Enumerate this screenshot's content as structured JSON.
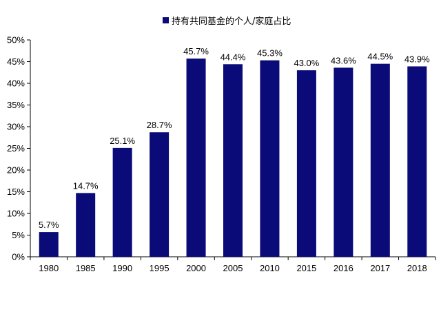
{
  "chart_data": {
    "type": "bar",
    "categories": [
      "1980",
      "1985",
      "1990",
      "1995",
      "2000",
      "2005",
      "2010",
      "2015",
      "2016",
      "2017",
      "2018"
    ],
    "series": [
      {
        "name": "持有共同基金的个人/家庭占比",
        "values": [
          5.7,
          14.7,
          25.1,
          28.7,
          45.7,
          44.4,
          45.3,
          43.0,
          43.6,
          44.5,
          43.9
        ],
        "data_labels": [
          "5.7%",
          "14.7%",
          "25.1%",
          "28.7%",
          "45.7%",
          "44.4%",
          "45.3%",
          "43.0%",
          "43.6%",
          "44.5%",
          "43.9%"
        ],
        "color": "#0a0a78"
      }
    ],
    "yticks": [
      0,
      5,
      10,
      15,
      20,
      25,
      30,
      35,
      40,
      45,
      50
    ],
    "ytick_labels": [
      "0%",
      "5%",
      "10%",
      "15%",
      "20%",
      "25%",
      "30%",
      "35%",
      "40%",
      "45%",
      "50%"
    ],
    "ylim": [
      0,
      50
    ],
    "xlabel": "",
    "ylabel": "",
    "grid": false,
    "legend_position": "top-center"
  }
}
